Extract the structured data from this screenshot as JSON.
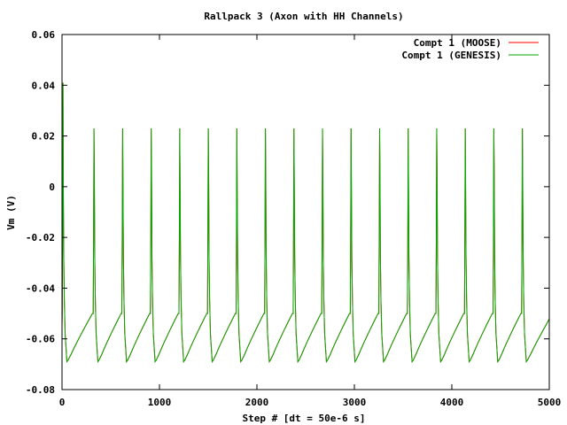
{
  "chart_data": {
    "type": "line",
    "title": "Rallpack 3 (Axon with HH Channels)",
    "xlabel": "Step # [dt = 50e-6 s]",
    "ylabel": "Vm (V)",
    "xlim": [
      0,
      5000
    ],
    "ylim": [
      -0.08,
      0.06
    ],
    "xticks": [
      0,
      1000,
      2000,
      3000,
      4000,
      5000
    ],
    "yticks": [
      -0.08,
      -0.06,
      -0.04,
      -0.02,
      0,
      0.02,
      0.04,
      0.06
    ],
    "xtick_labels": [
      "0",
      "1000",
      "2000",
      "3000",
      "4000",
      "5000"
    ],
    "ytick_labels": [
      "-0.08",
      "-0.06",
      "-0.04",
      "-0.02",
      "0",
      "0.02",
      "0.04",
      "0.06"
    ],
    "legend_position": "top-right",
    "grid": false,
    "series": [
      {
        "name": "Compt 1 (MOOSE)",
        "color": "#ff0000",
        "resting_potential": -0.055,
        "first_spike_step": 0,
        "first_spike_peak": 0.041,
        "spike_steps": [
          0,
          318,
          612,
          905,
          1198,
          1491,
          1784,
          2077,
          2370,
          2663,
          2956,
          3249,
          3542,
          3835,
          4128,
          4421,
          4714
        ],
        "spike_peak": 0.023,
        "after_hyperpolarization": -0.069,
        "pre_spike_threshold": -0.05
      },
      {
        "name": "Compt 1 (GENESIS)",
        "color": "#00aa00",
        "resting_potential": -0.055,
        "first_spike_step": 0,
        "first_spike_peak": 0.041,
        "spike_steps": [
          0,
          318,
          612,
          905,
          1198,
          1491,
          1784,
          2077,
          2370,
          2663,
          2956,
          3249,
          3542,
          3835,
          4128,
          4421,
          4714
        ],
        "spike_peak": 0.023,
        "after_hyperpolarization": -0.069,
        "pre_spike_threshold": -0.05
      }
    ]
  }
}
